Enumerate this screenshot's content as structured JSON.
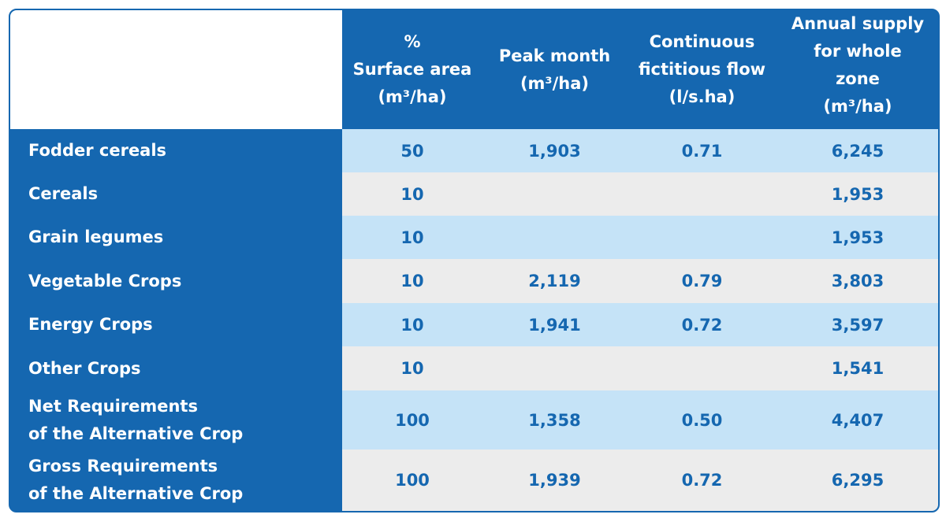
{
  "table": {
    "headers": [
      "%\nSurface area\n(m³/ha)",
      "Peak month\n(m³/ha)",
      "Continuous\nfictitious flow\n(l/s.ha)",
      "Annual supply\nfor whole\nzone\n(m³/ha)"
    ],
    "rows": [
      {
        "label": "Fodder cereals",
        "surface": "50",
        "peak": "1,903",
        "flow": "0.71",
        "annual": "6,245"
      },
      {
        "label": "Cereals",
        "surface": "10",
        "peak": "",
        "flow": "",
        "annual": "1,953"
      },
      {
        "label": "Grain legumes",
        "surface": "10",
        "peak": "",
        "flow": "",
        "annual": "1,953"
      },
      {
        "label": "Vegetable Crops",
        "surface": "10",
        "peak": "2,119",
        "flow": "0.79",
        "annual": "3,803"
      },
      {
        "label": "Energy Crops",
        "surface": "10",
        "peak": "1,941",
        "flow": "0.72",
        "annual": "3,597"
      },
      {
        "label": "Other Crops",
        "surface": "10",
        "peak": "",
        "flow": "",
        "annual": "1,541"
      },
      {
        "label": "Net Requirements\nof the Alternative Crop",
        "surface": "100",
        "peak": "1,358",
        "flow": "0.50",
        "annual": "4,407"
      },
      {
        "label": "Gross Requirements\nof the Alternative Crop",
        "surface": "100",
        "peak": "1,939",
        "flow": "0.72",
        "annual": "6,295"
      }
    ]
  },
  "colors": {
    "header_blue": "#1567b0",
    "row_light_blue": "#c5e3f7",
    "row_light_gray": "#ececec",
    "value_text": "#1567b0"
  }
}
